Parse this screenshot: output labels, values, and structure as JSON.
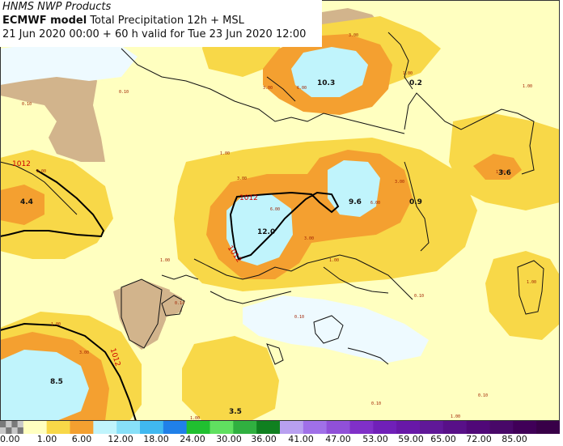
{
  "header": {
    "line1": "HNMS NWP Products",
    "model": "ECMWF model",
    "product": "Total Precipitation 12h + MSL",
    "validity": "21 Jun 2020 00:00 + 60 h valid for Tue 23 Jun 2020 12:00"
  },
  "colors": {
    "land": "#d2b48c",
    "sea": "#ffffff",
    "precip_lt1": "#ffffc0",
    "precip_1_3": "#f8d848",
    "precip_3_6": "#f4a030",
    "precip_6_12": "#c0f4fc",
    "isobar": "#000000",
    "isobar_label": "#cc0000"
  },
  "colorbar": {
    "colors": [
      "#c8c8c8",
      "#ffffc0",
      "#f8d848",
      "#f4a030",
      "#c0f4fc",
      "#88e0f8",
      "#40b8f0",
      "#2080e8",
      "#20c030",
      "#60e060",
      "#30b040",
      "#108020",
      "#b8a0f0",
      "#a070e8",
      "#9050d8",
      "#8030c8",
      "#7020b8",
      "#6818a8",
      "#601898",
      "#581088",
      "#500878",
      "#480868",
      "#400058",
      "#380048"
    ],
    "ticks": [
      "0.00",
      "1.00",
      "6.00",
      "12.00",
      "18.00",
      "24.00",
      "30.00",
      "36.00",
      "41.00",
      "47.00",
      "53.00",
      "59.00",
      "65.00",
      "72.00",
      "85.00"
    ]
  },
  "max_labels": [
    {
      "id": "max-10-3",
      "text": "10.3"
    },
    {
      "id": "max-0-2",
      "text": "0.2"
    },
    {
      "id": "max-3-6",
      "text": "3.6"
    },
    {
      "id": "max-4-4",
      "text": "4.4"
    },
    {
      "id": "max-9-6",
      "text": "9.6"
    },
    {
      "id": "max-0-9",
      "text": "0.9"
    },
    {
      "id": "max-12-0",
      "text": "12.0"
    },
    {
      "id": "max-8-5",
      "text": "8.5"
    },
    {
      "id": "max-3-5",
      "text": "3.5"
    }
  ],
  "contour_labels": [
    {
      "id": "c1",
      "text": "3.00"
    },
    {
      "id": "c2",
      "text": "3.00"
    },
    {
      "id": "c3",
      "text": "6.00"
    },
    {
      "id": "c4",
      "text": "1.00"
    },
    {
      "id": "c5",
      "text": "1.00"
    },
    {
      "id": "c6",
      "text": "0.10"
    },
    {
      "id": "c7",
      "text": "0.10"
    },
    {
      "id": "c8",
      "text": "1.00"
    },
    {
      "id": "c9",
      "text": "3.00"
    },
    {
      "id": "c10",
      "text": "3.00"
    },
    {
      "id": "c11",
      "text": "6.00"
    },
    {
      "id": "c12",
      "text": "6.00"
    },
    {
      "id": "c13",
      "text": "3.00"
    },
    {
      "id": "c14",
      "text": "1.00"
    },
    {
      "id": "c15",
      "text": "3.00"
    },
    {
      "id": "c16",
      "text": "1.00"
    },
    {
      "id": "c17",
      "text": "1.00"
    },
    {
      "id": "c18",
      "text": "0.10"
    },
    {
      "id": "c19",
      "text": "1.00"
    },
    {
      "id": "c20",
      "text": "0.10"
    },
    {
      "id": "c21",
      "text": "0.10"
    },
    {
      "id": "c22",
      "text": "1.00"
    },
    {
      "id": "c23",
      "text": "3.00"
    },
    {
      "id": "c24",
      "text": "1.00"
    },
    {
      "id": "c25",
      "text": "0.10"
    },
    {
      "id": "c26",
      "text": "0.10"
    },
    {
      "id": "c27",
      "text": "1.00"
    }
  ],
  "isobar_labels": [
    {
      "id": "iso1",
      "text": "1012"
    },
    {
      "id": "iso2",
      "text": "1012"
    },
    {
      "id": "iso3",
      "text": "1012"
    },
    {
      "id": "iso4",
      "text": "1012"
    }
  ]
}
